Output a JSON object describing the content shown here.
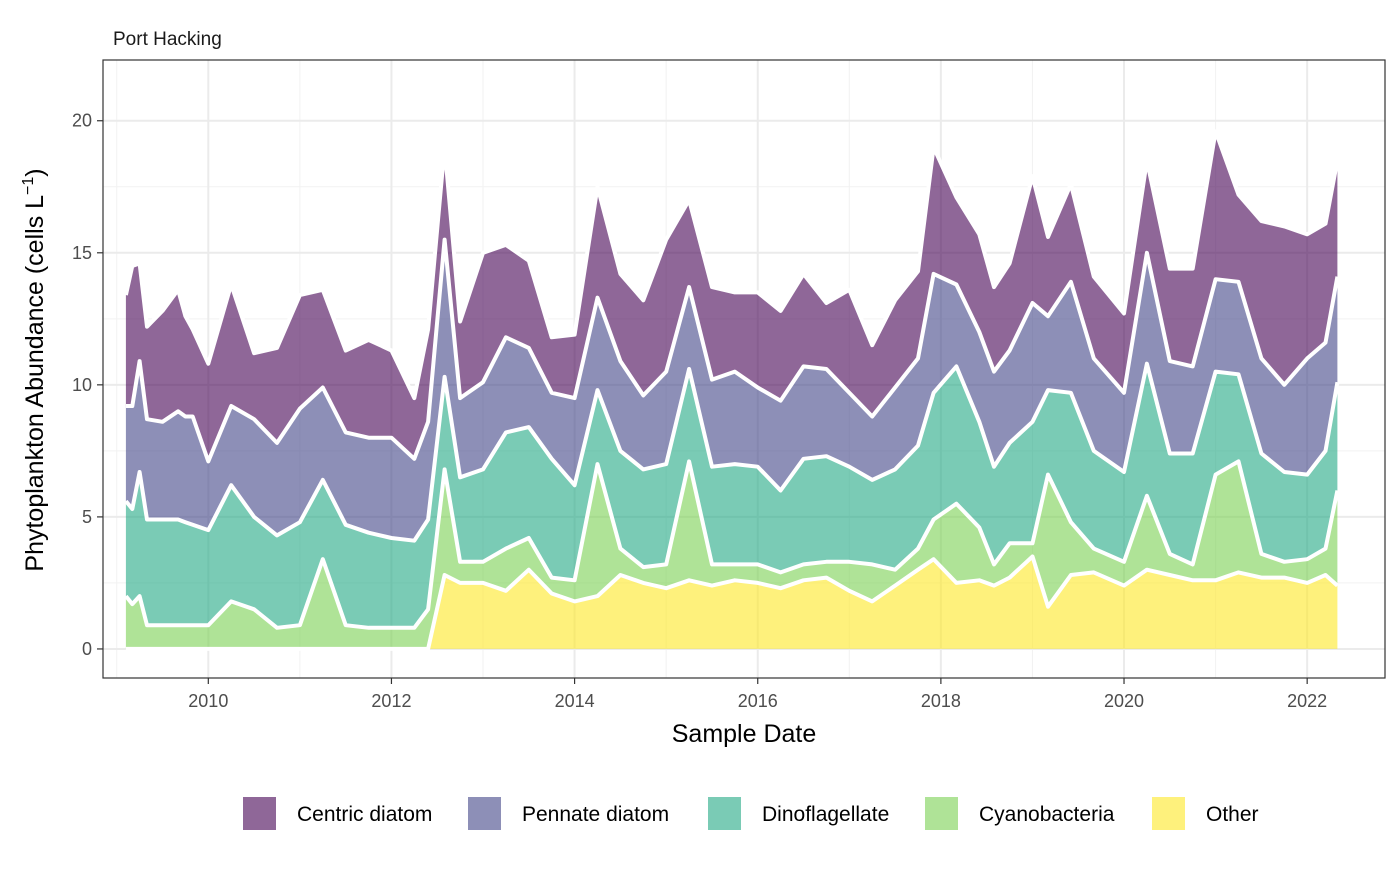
{
  "chart_data": {
    "type": "area",
    "stacked": true,
    "title": "Port Hacking",
    "xlabel": "Sample Date",
    "ylabel": "Phytoplankton Abundance (cells L",
    "ylabel_superscript": "−1",
    "ylabel_close": ")",
    "xlim": [
      2008.85,
      2022.85
    ],
    "ylim": [
      -1.1,
      22.3
    ],
    "grid": true,
    "legend_position": "bottom",
    "x_ticks": [
      2010,
      2012,
      2014,
      2016,
      2018,
      2020,
      2022
    ],
    "x_tick_labels": [
      "2010",
      "2012",
      "2014",
      "2016",
      "2018",
      "2020",
      "2022"
    ],
    "y_ticks": [
      0,
      5,
      10,
      15,
      20
    ],
    "y_tick_labels": [
      "0",
      "5",
      "10",
      "15",
      "20"
    ],
    "x": [
      2009.1,
      2009.17,
      2009.25,
      2009.33,
      2009.5,
      2009.67,
      2009.75,
      2009.83,
      2010.0,
      2010.25,
      2010.5,
      2010.75,
      2011.0,
      2011.25,
      2011.5,
      2011.75,
      2012.0,
      2012.25,
      2012.4,
      2012.58,
      2012.75,
      2013.0,
      2013.25,
      2013.5,
      2013.75,
      2014.0,
      2014.25,
      2014.5,
      2014.75,
      2015.0,
      2015.25,
      2015.5,
      2015.75,
      2016.0,
      2016.25,
      2016.5,
      2016.75,
      2017.0,
      2017.25,
      2017.5,
      2017.75,
      2017.92,
      2018.17,
      2018.42,
      2018.58,
      2018.75,
      2019.0,
      2019.17,
      2019.42,
      2019.67,
      2020.0,
      2020.25,
      2020.5,
      2020.75,
      2021.0,
      2021.25,
      2021.5,
      2021.75,
      2022.0,
      2022.2,
      2022.33
    ],
    "series": [
      {
        "name": "Other",
        "color": "#FDE725",
        "values": [
          0,
          0,
          0,
          0,
          0,
          0,
          0,
          0,
          0,
          0,
          0,
          0,
          0,
          0,
          0,
          0,
          0,
          0,
          0,
          2.8,
          2.5,
          2.5,
          2.2,
          3.0,
          2.1,
          1.8,
          2.0,
          2.8,
          2.5,
          2.3,
          2.6,
          2.4,
          2.6,
          2.5,
          2.3,
          2.6,
          2.7,
          2.2,
          1.8,
          2.4,
          3.0,
          3.4,
          2.5,
          2.6,
          2.4,
          2.7,
          3.5,
          1.6,
          2.8,
          2.9,
          2.4,
          3.0,
          2.8,
          2.6,
          2.6,
          2.9,
          2.7,
          2.7,
          2.5,
          2.8,
          2.4
        ]
      },
      {
        "name": "Cyanobacteria",
        "color": "#7AD151",
        "values": [
          2.0,
          1.7,
          2.0,
          0.9,
          0.9,
          0.9,
          0.9,
          0.9,
          0.9,
          1.8,
          1.5,
          0.8,
          0.9,
          3.4,
          0.9,
          0.8,
          0.8,
          0.8,
          1.5,
          4.0,
          0.8,
          0.8,
          1.6,
          1.2,
          0.6,
          0.8,
          5.0,
          1.0,
          0.6,
          0.9,
          4.5,
          0.8,
          0.6,
          0.7,
          0.6,
          0.6,
          0.6,
          1.1,
          1.4,
          0.6,
          0.8,
          1.5,
          3.0,
          2.0,
          0.8,
          1.3,
          0.5,
          5.0,
          2.0,
          0.9,
          0.9,
          2.8,
          0.8,
          0.6,
          4.0,
          4.2,
          0.9,
          0.6,
          0.9,
          1.0,
          3.6
        ]
      },
      {
        "name": "Dinoflagellate",
        "color": "#22A884",
        "values": [
          3.6,
          3.6,
          4.7,
          4.0,
          4.0,
          4.0,
          3.9,
          3.8,
          3.6,
          4.4,
          3.5,
          3.5,
          3.9,
          3.0,
          3.8,
          3.6,
          3.4,
          3.3,
          3.4,
          3.5,
          3.2,
          3.5,
          4.4,
          4.2,
          4.5,
          3.6,
          2.8,
          3.7,
          3.7,
          3.8,
          3.5,
          3.7,
          3.8,
          3.7,
          3.1,
          4.0,
          4.0,
          3.6,
          3.2,
          3.8,
          3.9,
          4.8,
          5.2,
          4.0,
          3.7,
          3.8,
          4.6,
          3.2,
          4.9,
          3.7,
          3.4,
          5.0,
          3.8,
          4.2,
          3.9,
          3.3,
          3.8,
          3.4,
          3.2,
          3.7,
          4.1
        ]
      },
      {
        "name": "Pennate diatom",
        "color": "#414487",
        "values": [
          3.6,
          3.9,
          4.2,
          3.8,
          3.7,
          4.1,
          4.0,
          4.1,
          2.6,
          3.0,
          3.7,
          3.5,
          4.3,
          3.5,
          3.5,
          3.6,
          3.8,
          3.1,
          3.7,
          5.2,
          3.0,
          3.3,
          3.6,
          3.0,
          2.5,
          3.3,
          3.5,
          3.4,
          2.8,
          3.5,
          3.1,
          3.3,
          3.5,
          3.0,
          3.4,
          3.5,
          3.3,
          2.8,
          2.4,
          3.1,
          3.3,
          4.5,
          3.1,
          3.4,
          3.6,
          3.5,
          4.5,
          2.8,
          4.2,
          3.5,
          3.0,
          4.2,
          3.5,
          3.3,
          3.5,
          3.5,
          3.6,
          3.3,
          4.4,
          4.1,
          4.0
        ]
      },
      {
        "name": "Centric diatom",
        "color": "#440154",
        "values": [
          4.2,
          5.3,
          3.7,
          3.5,
          4.2,
          4.6,
          3.8,
          3.3,
          3.7,
          4.6,
          2.5,
          3.6,
          4.3,
          3.7,
          3.1,
          3.7,
          3.3,
          2.3,
          3.5,
          3.5,
          2.9,
          4.9,
          3.5,
          3.3,
          2.1,
          2.4,
          4.2,
          3.3,
          3.6,
          5.0,
          3.3,
          3.5,
          3.0,
          3.6,
          3.4,
          3.5,
          2.5,
          3.9,
          2.7,
          3.3,
          3.3,
          4.8,
          3.3,
          3.7,
          3.2,
          3.3,
          4.8,
          3.0,
          3.7,
          3.1,
          3.0,
          3.5,
          3.5,
          3.7,
          5.6,
          3.3,
          5.2,
          6.0,
          4.7,
          4.5,
          4.4
        ]
      }
    ],
    "legend_order": [
      "Centric diatom",
      "Pennate diatom",
      "Dinoflagellate",
      "Cyanobacteria",
      "Other"
    ]
  }
}
